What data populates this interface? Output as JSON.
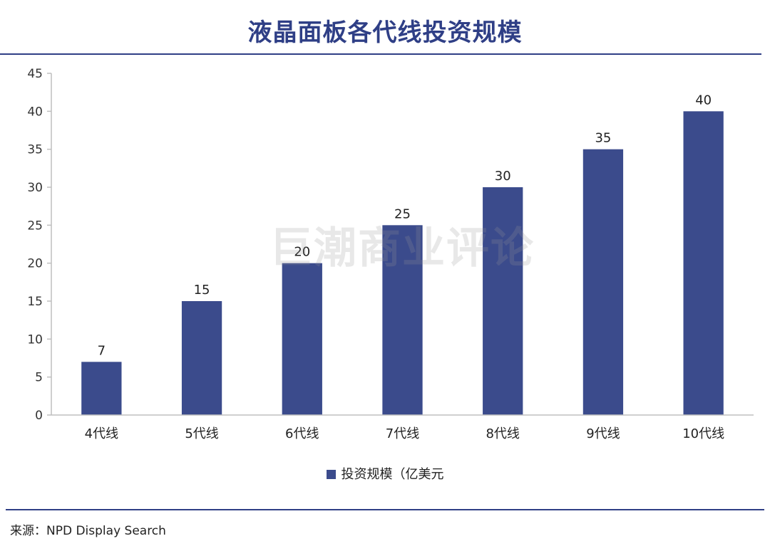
{
  "title": "液晶面板各代线投资规模",
  "source": "来源：NPD Display Search",
  "watermark": "巨潮商业评论",
  "colors": {
    "bar": "#3b4b8c",
    "title": "#2f3f86",
    "axis": "#bfbfbf"
  },
  "chart_data": {
    "type": "bar",
    "title": "液晶面板各代线投资规模",
    "categories": [
      "4代线",
      "5代线",
      "6代线",
      "7代线",
      "8代线",
      "9代线",
      "10代线"
    ],
    "series": [
      {
        "name": "投资规模（亿美元",
        "values": [
          7,
          15,
          20,
          25,
          30,
          35,
          40
        ]
      }
    ],
    "ylim": [
      0,
      45
    ],
    "yticks": [
      0,
      5,
      10,
      15,
      20,
      25,
      30,
      35,
      40,
      45
    ],
    "grid": false,
    "legend": "bottom",
    "data_labels": true
  }
}
